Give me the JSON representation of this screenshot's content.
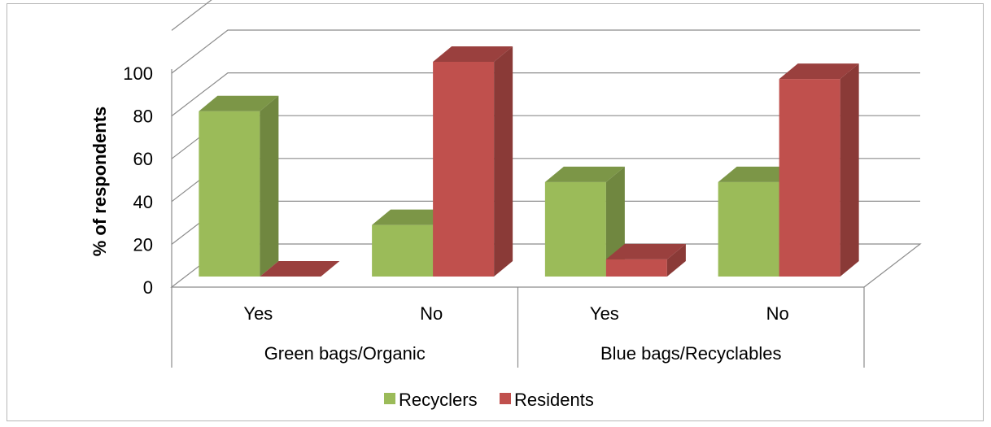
{
  "chart_data": {
    "type": "bar",
    "style": "3d-clustered-column",
    "ylabel": "% of respondents",
    "xlabel": "",
    "ylim": [
      0,
      100
    ],
    "y_ticks": [
      "0",
      "20",
      "40",
      "60",
      "80",
      "100"
    ],
    "grid": true,
    "legend_position": "bottom",
    "groups": [
      {
        "label": "Green bags/Organic",
        "categories": [
          "Yes",
          "No"
        ]
      },
      {
        "label": "Blue bags/Recyclables",
        "categories": [
          "Yes",
          "No"
        ]
      }
    ],
    "categories": [
      "Yes",
      "No",
      "Yes",
      "No"
    ],
    "series": [
      {
        "name": "Recyclers",
        "color": "#9bbb59",
        "values": [
          77,
          24,
          44,
          44
        ]
      },
      {
        "name": "Residents",
        "color": "#c0504d",
        "values": [
          0,
          100,
          8,
          92
        ]
      }
    ]
  }
}
